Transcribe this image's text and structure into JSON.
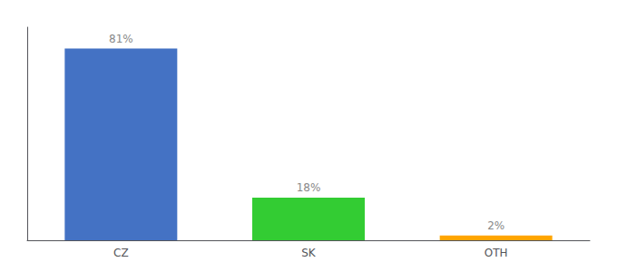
{
  "chart_data": {
    "type": "bar",
    "categories": [
      "CZ",
      "SK",
      "OTH"
    ],
    "values": [
      81,
      18,
      2
    ],
    "value_labels": [
      "81%",
      "18%",
      "2%"
    ],
    "colors": [
      "#4472c4",
      "#33cc33",
      "#ffa500"
    ],
    "ylim": [
      0,
      90
    ],
    "yticks": [],
    "grid": false,
    "data_labels": true,
    "tick_labels": "x"
  }
}
